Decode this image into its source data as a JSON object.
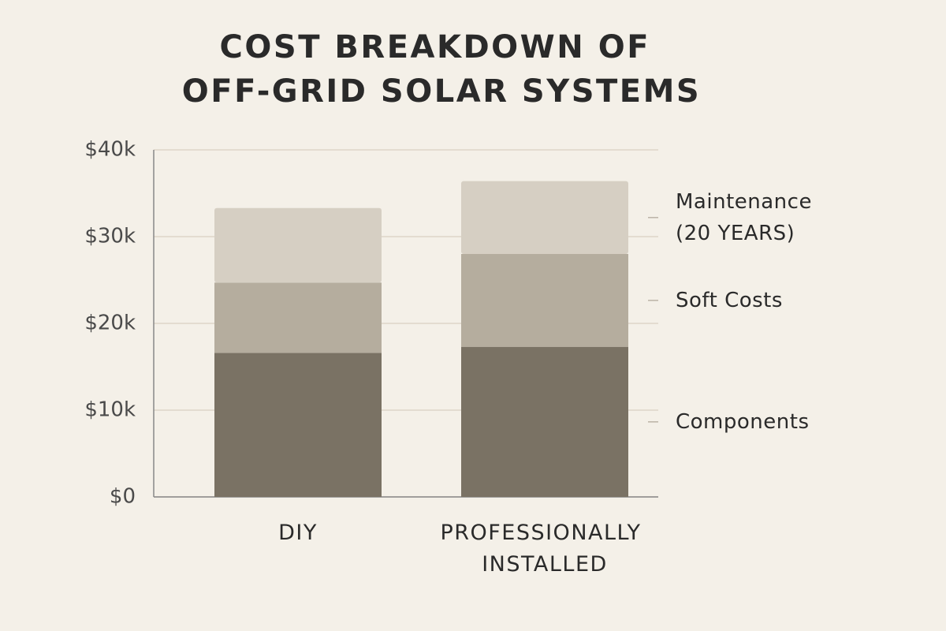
{
  "chart_data": {
    "type": "stacked_bar",
    "title": "COST BREAKDOWN OF OFF-GRID SOLAR SYSTEMS",
    "categories": [
      "DIY",
      "PROFESSIONALLY INSTALLED"
    ],
    "series": [
      {
        "name": "Components",
        "color": "#7a7264",
        "values": [
          16600,
          17300
        ]
      },
      {
        "name": "Soft Costs",
        "color": "#b5ad9e",
        "values": [
          8100,
          10700
        ]
      },
      {
        "name": "Maintenance (20 YEARS)",
        "color": "#d6cfc3",
        "values": [
          8600,
          8400
        ]
      }
    ],
    "ylim": [
      0,
      40000
    ],
    "yticks": [
      {
        "value": 0,
        "label": "$0"
      },
      {
        "value": 10000,
        "label": "$10k"
      },
      {
        "value": 20000,
        "label": "$20k"
      },
      {
        "value": 30000,
        "label": "$30k"
      },
      {
        "value": 40000,
        "label": "$40k"
      }
    ],
    "grid": true,
    "legend": "right"
  }
}
